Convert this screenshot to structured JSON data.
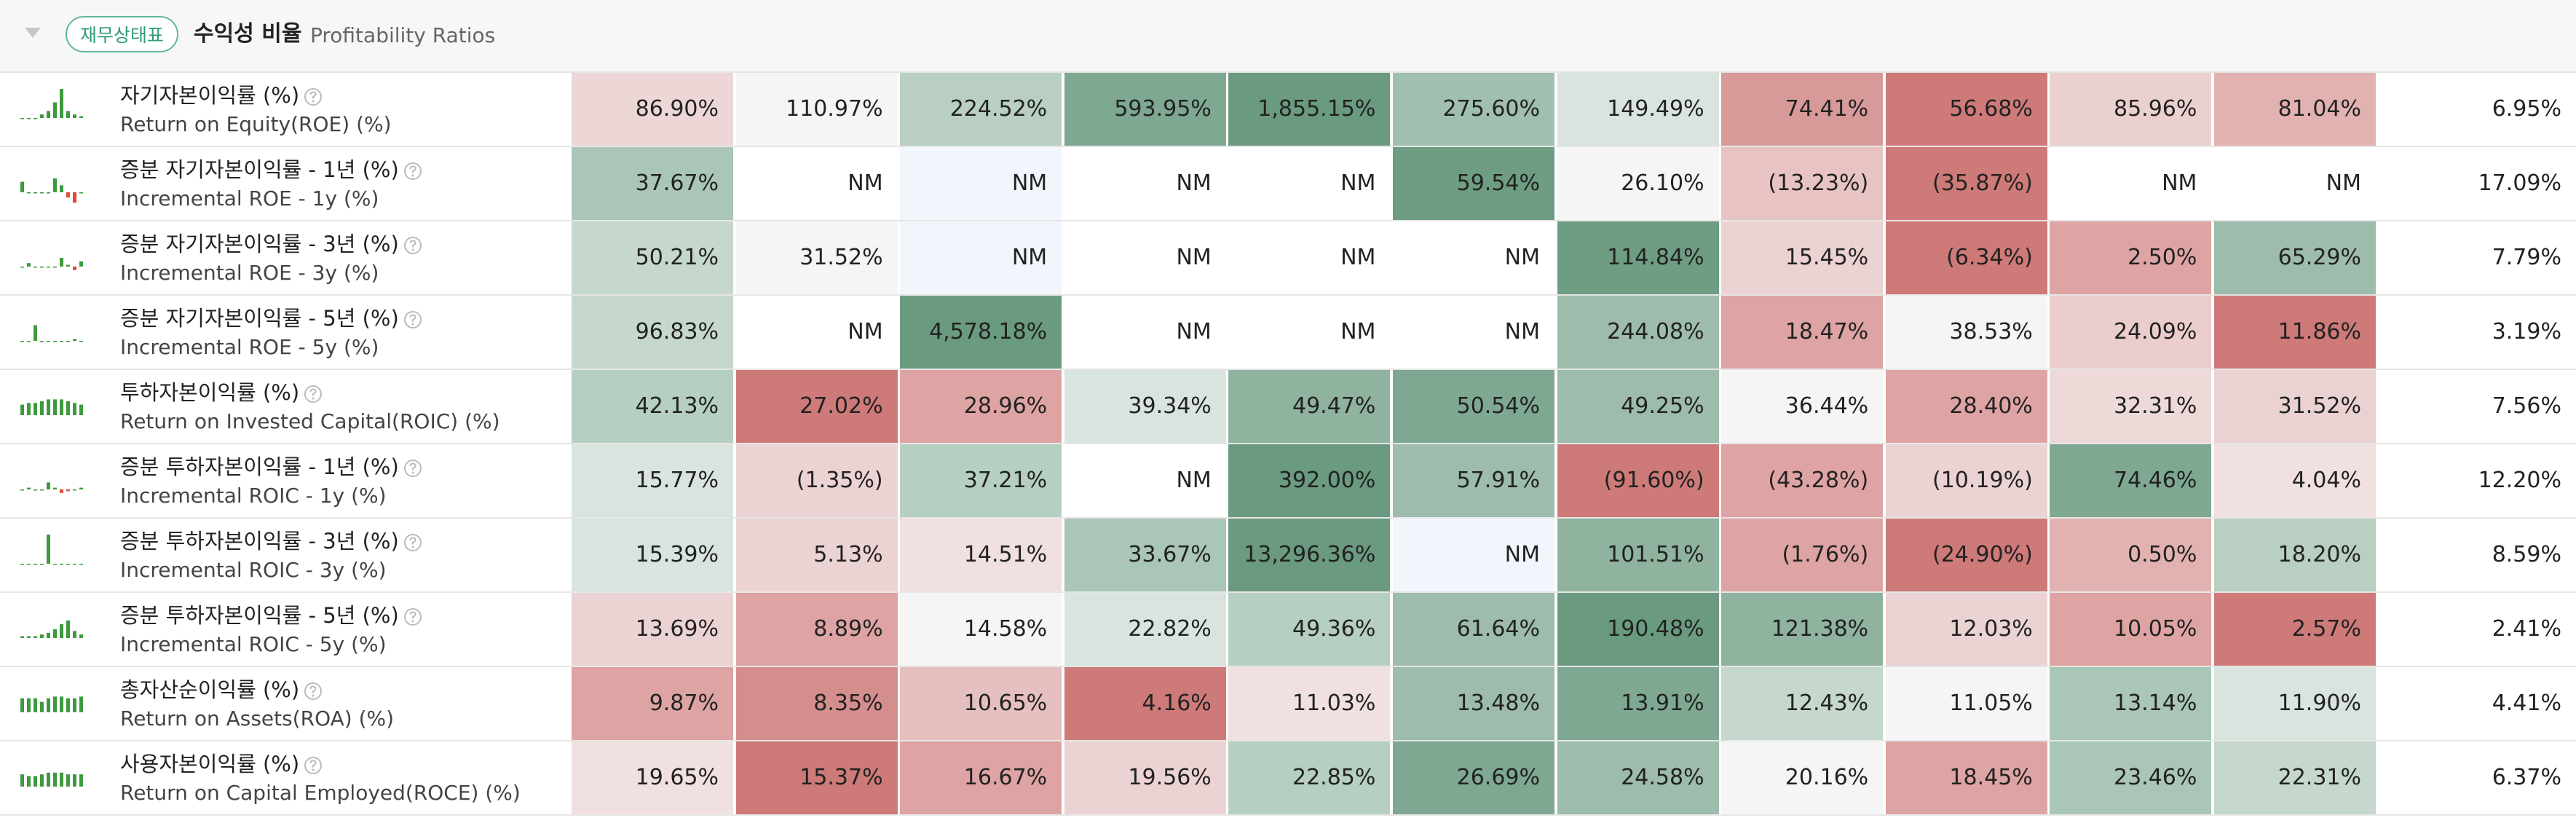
{
  "header": {
    "badge": "재무상태표",
    "title": "수익성 비율",
    "subtitle": "Profitability Ratios"
  },
  "rows": [
    {
      "label_ko": "자기자본이익률 (%)",
      "label_en": "Return on Equity(ROE) (%)",
      "last": "6.95%",
      "cells": [
        {
          "text": "86.90%",
          "color": "#ecd6d6"
        },
        {
          "text": "110.97%",
          "color": "#f5f5f5"
        },
        {
          "text": "224.52%",
          "color": "#b8cfc2"
        },
        {
          "text": "593.95%",
          "color": "#7ea891"
        },
        {
          "text": "1,855.15%",
          "color": "#6a9a80"
        },
        {
          "text": "275.60%",
          "color": "#a0bfae"
        },
        {
          "text": "149.49%",
          "color": "#d9e4de"
        },
        {
          "text": "74.41%",
          "color": "#d79a99"
        },
        {
          "text": "56.68%",
          "color": "#cd7a78"
        },
        {
          "text": "85.96%",
          "color": "#ebd0d0"
        },
        {
          "text": "81.04%",
          "color": "#e2b2b1"
        }
      ]
    },
    {
      "label_ko": "증분 자기자본이익률 - 1년 (%)",
      "label_en": "Incremental ROE - 1y (%)",
      "last": "17.09%",
      "cells": [
        {
          "text": "37.67%",
          "color": "#a9c6b6"
        },
        {
          "text": "NM",
          "color": "#ffffff"
        },
        {
          "text": "NM",
          "color": "#f0f6fc"
        },
        {
          "text": "NM",
          "color": "#ffffff"
        },
        {
          "text": "NM",
          "color": "#ffffff"
        },
        {
          "text": "59.54%",
          "color": "#6f9d84"
        },
        {
          "text": "26.10%",
          "color": "#f5f5f5"
        },
        {
          "text": "(13.23%)",
          "color": "#e8c3c3"
        },
        {
          "text": "(35.87%)",
          "color": "#cd7a78"
        },
        {
          "text": "NM",
          "color": "#ffffff"
        },
        {
          "text": "NM",
          "color": "#ffffff"
        }
      ]
    },
    {
      "label_ko": "증분 자기자본이익률 - 3년 (%)",
      "label_en": "Incremental ROE - 3y (%)",
      "last": "7.79%",
      "cells": [
        {
          "text": "50.21%",
          "color": "#c6d8cd"
        },
        {
          "text": "31.52%",
          "color": "#f5f5f5"
        },
        {
          "text": "NM",
          "color": "#f0f6fc"
        },
        {
          "text": "NM",
          "color": "#ffffff"
        },
        {
          "text": "NM",
          "color": "#ffffff"
        },
        {
          "text": "NM",
          "color": "#ffffff"
        },
        {
          "text": "114.84%",
          "color": "#6f9d84"
        },
        {
          "text": "15.45%",
          "color": "#ecd3d3"
        },
        {
          "text": "(6.34%)",
          "color": "#cd7a78"
        },
        {
          "text": "2.50%",
          "color": "#dea4a3"
        },
        {
          "text": "65.29%",
          "color": "#9dbcab"
        }
      ]
    },
    {
      "label_ko": "증분 자기자본이익률 - 5년 (%)",
      "label_en": "Incremental ROE - 5y (%)",
      "last": "3.19%",
      "cells": [
        {
          "text": "96.83%",
          "color": "#c6d8cd"
        },
        {
          "text": "NM",
          "color": "#ffffff"
        },
        {
          "text": "4,578.18%",
          "color": "#6a9a80"
        },
        {
          "text": "NM",
          "color": "#ffffff"
        },
        {
          "text": "NM",
          "color": "#ffffff"
        },
        {
          "text": "NM",
          "color": "#ffffff"
        },
        {
          "text": "244.08%",
          "color": "#9dbcab"
        },
        {
          "text": "18.47%",
          "color": "#dea4a3"
        },
        {
          "text": "38.53%",
          "color": "#f5f5f5"
        },
        {
          "text": "24.09%",
          "color": "#ebcdcd"
        },
        {
          "text": "11.86%",
          "color": "#cd7a78"
        }
      ]
    },
    {
      "label_ko": "투하자본이익률 (%)",
      "label_en": "Return on Invested Capital(ROIC) (%)",
      "last": "7.56%",
      "cells": [
        {
          "text": "42.13%",
          "color": "#b5cfc0"
        },
        {
          "text": "27.02%",
          "color": "#cd7a78"
        },
        {
          "text": "28.96%",
          "color": "#dea4a3"
        },
        {
          "text": "39.34%",
          "color": "#d9e4de"
        },
        {
          "text": "49.47%",
          "color": "#8fb39f"
        },
        {
          "text": "50.54%",
          "color": "#7ea891"
        },
        {
          "text": "49.25%",
          "color": "#9dbcab"
        },
        {
          "text": "36.44%",
          "color": "#f5f5f5"
        },
        {
          "text": "28.40%",
          "color": "#dea4a3"
        },
        {
          "text": "32.31%",
          "color": "#eed9d9"
        },
        {
          "text": "31.52%",
          "color": "#ebd2d2"
        }
      ]
    },
    {
      "label_ko": "증분 투하자본이익률 - 1년 (%)",
      "label_en": "Incremental ROIC - 1y (%)",
      "last": "12.20%",
      "cells": [
        {
          "text": "15.77%",
          "color": "#d9e4de"
        },
        {
          "text": "(1.35%)",
          "color": "#ecd3d3"
        },
        {
          "text": "37.21%",
          "color": "#b5cfc0"
        },
        {
          "text": "NM",
          "color": "#ffffff"
        },
        {
          "text": "392.00%",
          "color": "#6a9a80"
        },
        {
          "text": "57.91%",
          "color": "#9dbcab"
        },
        {
          "text": "(91.60%)",
          "color": "#cd7a78"
        },
        {
          "text": "(43.28%)",
          "color": "#dea4a3"
        },
        {
          "text": "(10.19%)",
          "color": "#ecd3d3"
        },
        {
          "text": "74.46%",
          "color": "#7ea891"
        },
        {
          "text": "4.04%",
          "color": "#f0e0e0"
        }
      ]
    },
    {
      "label_ko": "증분 투하자본이익률 - 3년 (%)",
      "label_en": "Incremental ROIC - 3y (%)",
      "last": "8.59%",
      "cells": [
        {
          "text": "15.39%",
          "color": "#d9e4de"
        },
        {
          "text": "5.13%",
          "color": "#ecd3d3"
        },
        {
          "text": "14.51%",
          "color": "#f0e0e0"
        },
        {
          "text": "33.67%",
          "color": "#a9c6b6"
        },
        {
          "text": "13,296.36%",
          "color": "#6a9a80"
        },
        {
          "text": "NM",
          "color": "#f0f6fc"
        },
        {
          "text": "101.51%",
          "color": "#8fb39f"
        },
        {
          "text": "(1.76%)",
          "color": "#dea4a3"
        },
        {
          "text": "(24.90%)",
          "color": "#cd7a78"
        },
        {
          "text": "0.50%",
          "color": "#e2b2b1"
        },
        {
          "text": "18.20%",
          "color": "#b8cfc2"
        }
      ]
    },
    {
      "label_ko": "증분 투하자본이익률 - 5년 (%)",
      "label_en": "Incremental ROIC - 5y (%)",
      "last": "2.41%",
      "cells": [
        {
          "text": "13.69%",
          "color": "#ecd3d3"
        },
        {
          "text": "8.89%",
          "color": "#dea4a3"
        },
        {
          "text": "14.58%",
          "color": "#f5f5f5"
        },
        {
          "text": "22.82%",
          "color": "#d9e4de"
        },
        {
          "text": "49.36%",
          "color": "#b5cfc0"
        },
        {
          "text": "61.64%",
          "color": "#9dbcab"
        },
        {
          "text": "190.48%",
          "color": "#6a9a80"
        },
        {
          "text": "121.38%",
          "color": "#8fb39f"
        },
        {
          "text": "12.03%",
          "color": "#ecd3d3"
        },
        {
          "text": "10.05%",
          "color": "#dea4a3"
        },
        {
          "text": "2.57%",
          "color": "#cd7a78"
        }
      ]
    },
    {
      "label_ko": "총자산순이익률 (%)",
      "label_en": "Return on Assets(ROA) (%)",
      "last": "4.41%",
      "cells": [
        {
          "text": "9.87%",
          "color": "#dea4a3"
        },
        {
          "text": "8.35%",
          "color": "#d48e8c"
        },
        {
          "text": "10.65%",
          "color": "#e6c0c0"
        },
        {
          "text": "4.16%",
          "color": "#cd7a78"
        },
        {
          "text": "11.03%",
          "color": "#f0e0e0"
        },
        {
          "text": "13.48%",
          "color": "#9dbcab"
        },
        {
          "text": "13.91%",
          "color": "#7ea891"
        },
        {
          "text": "12.43%",
          "color": "#c6d8cd"
        },
        {
          "text": "11.05%",
          "color": "#f5f5f5"
        },
        {
          "text": "13.14%",
          "color": "#a9c6b6"
        },
        {
          "text": "11.90%",
          "color": "#d9e4de"
        }
      ]
    },
    {
      "label_ko": "사용자본이익률 (%)",
      "label_en": "Return on Capital Employed(ROCE) (%)",
      "last": "6.37%",
      "cells": [
        {
          "text": "19.65%",
          "color": "#f0e0e0"
        },
        {
          "text": "15.37%",
          "color": "#cd7a78"
        },
        {
          "text": "16.67%",
          "color": "#dea4a3"
        },
        {
          "text": "19.56%",
          "color": "#ecd3d3"
        },
        {
          "text": "22.85%",
          "color": "#b5cfc0"
        },
        {
          "text": "26.69%",
          "color": "#7ea891"
        },
        {
          "text": "24.58%",
          "color": "#9dbcab"
        },
        {
          "text": "20.16%",
          "color": "#f5f5f5"
        },
        {
          "text": "18.45%",
          "color": "#dea4a3"
        },
        {
          "text": "23.46%",
          "color": "#a9c6b6"
        },
        {
          "text": "22.31%",
          "color": "#c6d8cd"
        }
      ]
    }
  ]
}
